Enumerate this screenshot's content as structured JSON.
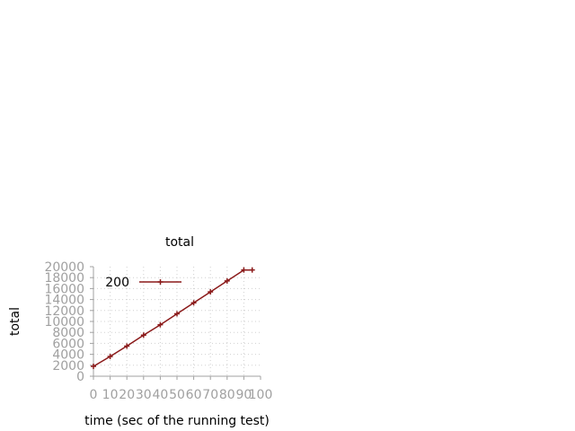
{
  "chart_data": {
    "type": "line",
    "title": "total",
    "xlabel": "time (sec of the running test)",
    "ylabel": "total",
    "xlim": [
      0,
      100
    ],
    "ylim": [
      0,
      20000
    ],
    "xticks": [
      "0",
      "10",
      "20",
      "30",
      "40",
      "50",
      "60",
      "70",
      "80",
      "90",
      "100"
    ],
    "yticks": [
      "0",
      "2000",
      "4000",
      "6000",
      "8000",
      "10000",
      "12000",
      "14000",
      "16000",
      "18000",
      "20000"
    ],
    "grid": true,
    "legend_position": "top-left",
    "series": [
      {
        "name": "200",
        "color": "#8b1a1a",
        "marker": "plus",
        "x": [
          0,
          10,
          20,
          30,
          40,
          50,
          60,
          70,
          80,
          90,
          95
        ],
        "y": [
          1800,
          3600,
          5500,
          7500,
          9400,
          11400,
          13400,
          15400,
          17400,
          19400,
          19400
        ]
      }
    ]
  }
}
